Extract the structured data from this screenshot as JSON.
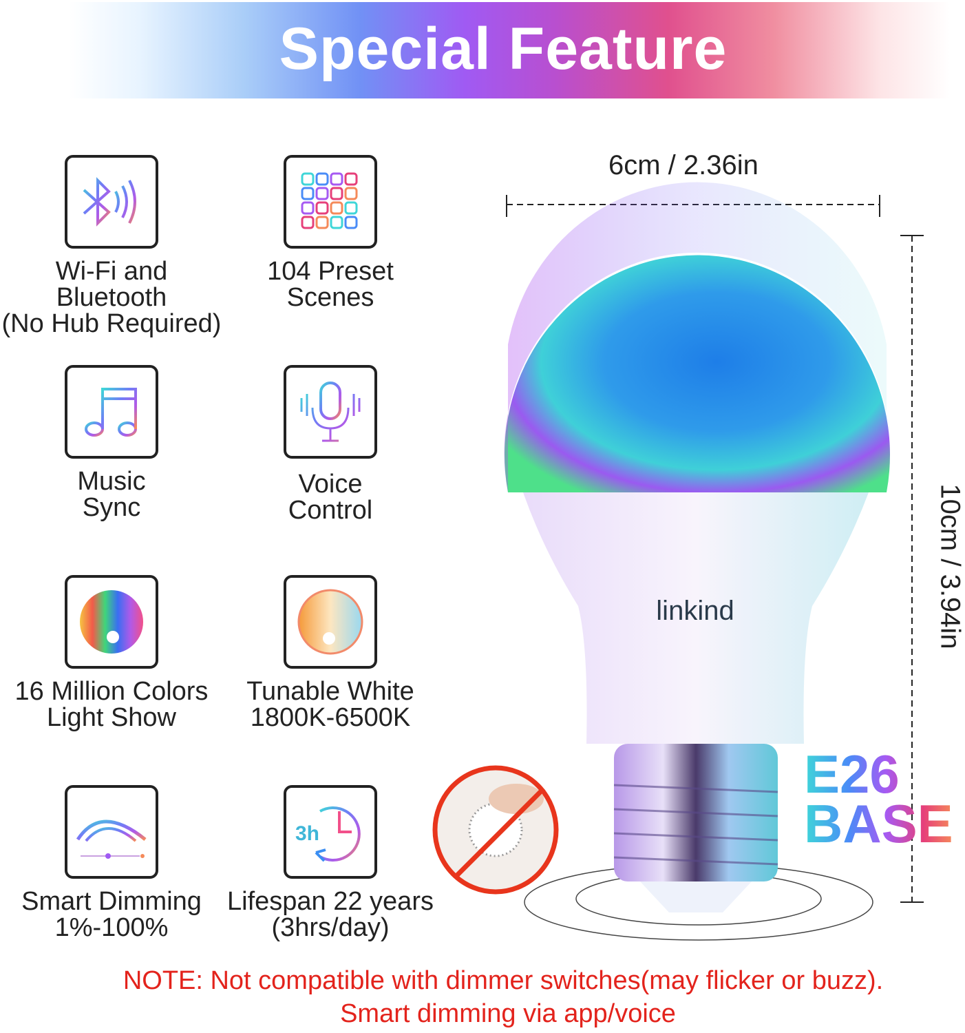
{
  "header": {
    "title": "Special Feature"
  },
  "features": [
    {
      "icon": "bluetooth-wifi-icon",
      "lines": [
        "Wi-Fi and",
        "Bluetooth",
        "(No Hub Required)"
      ]
    },
    {
      "icon": "preset-scenes-grid-icon",
      "lines": [
        "104 Preset",
        "Scenes"
      ]
    },
    {
      "icon": "music-note-icon",
      "lines": [
        "Music",
        "Sync"
      ]
    },
    {
      "icon": "microphone-icon",
      "lines": [
        "Voice",
        "Control"
      ]
    },
    {
      "icon": "color-wheel-icon",
      "lines": [
        "16 Million Colors",
        "Light Show"
      ]
    },
    {
      "icon": "warm-white-wheel-icon",
      "lines": [
        "Tunable White",
        "1800K-6500K"
      ]
    },
    {
      "icon": "dimming-arc-icon",
      "lines": [
        "Smart Dimming",
        "1%-100%"
      ]
    },
    {
      "icon": "clock-3h-icon",
      "icon_text": "3h",
      "lines": [
        "Lifespan 22 years",
        "(3hrs/day)"
      ]
    }
  ],
  "product": {
    "brand": "Linkind",
    "width": "6cm / 2.36in",
    "height": "10cm / 3.94in",
    "base_lines": [
      "E26",
      "BASE"
    ]
  },
  "note": {
    "line1": "NOTE:  Not compatible with dimmer switches(may flicker or buzz).",
    "line2": "Smart dimming via app/voice"
  },
  "colors": {
    "note": "#e3231c",
    "gradient": [
      "#a9cdf8",
      "#7191f5",
      "#a05af3",
      "#e0508e",
      "#f08ea0"
    ]
  }
}
